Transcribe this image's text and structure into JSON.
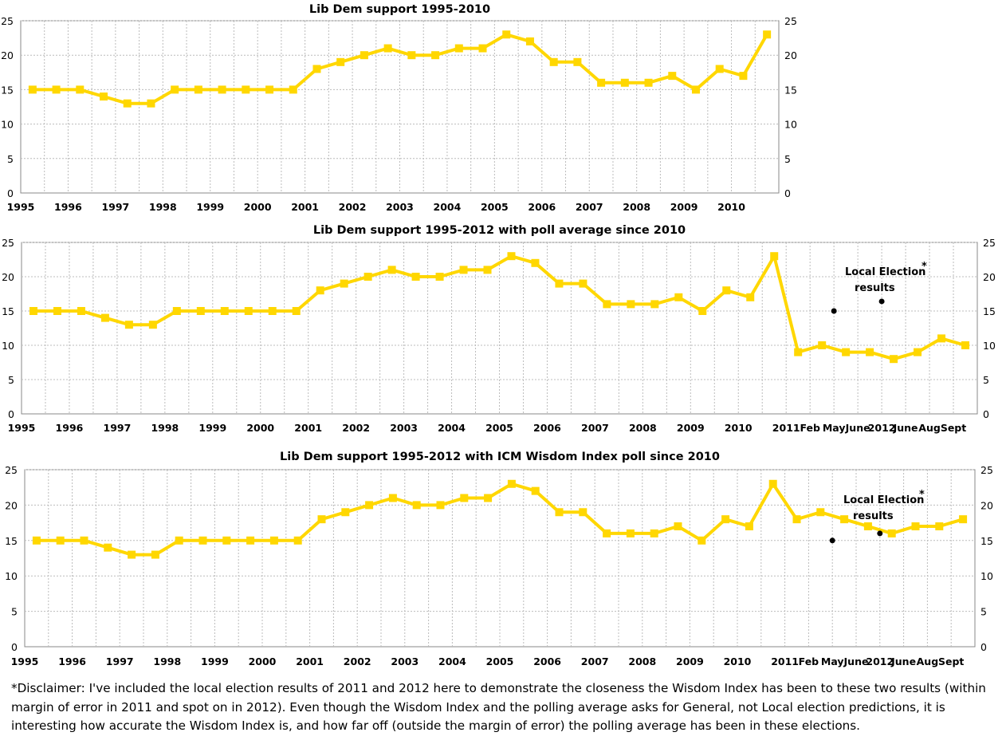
{
  "chart_data": [
    {
      "type": "line",
      "title": "Lib Dem support 1995-2010",
      "x_labels": [
        "1995",
        "",
        "1996",
        "",
        "1997",
        "",
        "1998",
        "",
        "1999",
        "",
        "2000",
        "",
        "2001",
        "",
        "2002",
        "",
        "2003",
        "",
        "2004",
        "",
        "2005",
        "",
        "2006",
        "",
        "2007",
        "",
        "2008",
        "",
        "2009",
        "",
        "2010",
        ""
      ],
      "series": [
        {
          "values": [
            15,
            15,
            15,
            14,
            13,
            13,
            15,
            15,
            15,
            15,
            15,
            15,
            18,
            19,
            20,
            21,
            20,
            20,
            21,
            21,
            23,
            22,
            19,
            19,
            16,
            16,
            16,
            17,
            15,
            18,
            17,
            23
          ]
        }
      ],
      "ylim": [
        0,
        25
      ],
      "yticks": [
        0,
        5,
        10,
        15,
        20,
        25
      ],
      "y_axis_both_sides": true,
      "grid": true,
      "annotations": []
    },
    {
      "type": "line",
      "title": "Lib Dem support 1995-2012 with poll average since 2010",
      "x_labels": [
        "1995",
        "",
        "1996",
        "",
        "1997",
        "",
        "1998",
        "",
        "1999",
        "",
        "2000",
        "",
        "2001",
        "",
        "2002",
        "",
        "2003",
        "",
        "2004",
        "",
        "2005",
        "",
        "2006",
        "",
        "2007",
        "",
        "2008",
        "",
        "2009",
        "",
        "2010",
        "",
        "2011",
        "Feb",
        "May",
        "June",
        "2012",
        "June",
        "Aug",
        "Sept"
      ],
      "series": [
        {
          "values": [
            15,
            15,
            15,
            14,
            13,
            13,
            15,
            15,
            15,
            15,
            15,
            15,
            18,
            19,
            20,
            21,
            20,
            20,
            21,
            21,
            23,
            22,
            19,
            19,
            16,
            16,
            16,
            17,
            15,
            18,
            17,
            23,
            9,
            10,
            9,
            9,
            8,
            9,
            11,
            10
          ]
        }
      ],
      "points": [
        {
          "x": "May",
          "y": 15
        },
        {
          "x": "2012",
          "y": 16.4
        }
      ],
      "annotations": [
        "Local Election",
        "*",
        "results"
      ],
      "ylim": [
        0,
        25
      ],
      "yticks": [
        0,
        5,
        10,
        15,
        20,
        25
      ],
      "y_axis_both_sides": true,
      "grid": true
    },
    {
      "type": "line",
      "title": "Lib Dem support 1995-2012 with ICM Wisdom Index poll since 2010",
      "x_labels": [
        "1995",
        "",
        "1996",
        "",
        "1997",
        "",
        "1998",
        "",
        "1999",
        "",
        "2000",
        "",
        "2001",
        "",
        "2002",
        "",
        "2003",
        "",
        "2004",
        "",
        "2005",
        "",
        "2006",
        "",
        "2007",
        "",
        "2008",
        "",
        "2009",
        "",
        "2010",
        "",
        "2011",
        "Feb",
        "May",
        "June",
        "2012",
        "June",
        "Aug",
        "Sept"
      ],
      "series": [
        {
          "values": [
            15,
            15,
            15,
            14,
            13,
            13,
            15,
            15,
            15,
            15,
            15,
            15,
            18,
            19,
            20,
            21,
            20,
            20,
            21,
            21,
            23,
            22,
            19,
            19,
            16,
            16,
            16,
            17,
            15,
            18,
            17,
            23,
            18,
            19,
            18,
            17,
            16,
            17,
            17,
            18
          ]
        }
      ],
      "points": [
        {
          "x": "May",
          "y": 15
        },
        {
          "x": "2012",
          "y": 16
        }
      ],
      "annotations": [
        "Local Election",
        "*",
        "results"
      ],
      "ylim": [
        0,
        25
      ],
      "yticks": [
        0,
        5,
        10,
        15,
        20,
        25
      ],
      "y_axis_both_sides": true,
      "grid": true
    }
  ],
  "colors": {
    "line": "#ffd700",
    "marker": "#ffd700",
    "point": "#000000",
    "grid": "#bcbcbc",
    "axis": "#888888"
  },
  "disclaimer": "*Disclaimer: I've included the local election results of 2011 and 2012 here to demonstrate the closeness the Wisdom Index has been to these two results (within margin of error in 2011 and spot on in 2012). Even though the Wisdom Index and the polling average asks for General, not Local election predictions, it is interesting how accurate the Wisdom Index is, and how far off (outside the margin of error) the polling average has been in these elections."
}
